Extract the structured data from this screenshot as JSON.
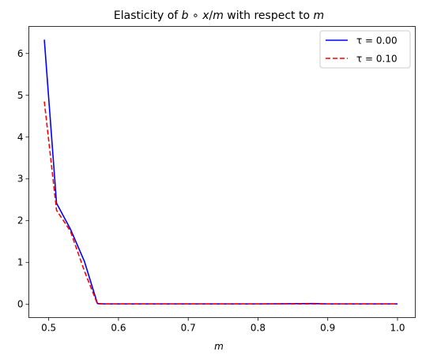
{
  "chart_data": {
    "type": "line",
    "title": {
      "prefix": "Elasticity of ",
      "expr_b": "b",
      "expr_op": " ∘ ",
      "expr_x": "x",
      "expr_slash": "/",
      "expr_m": "m",
      "middle": " with respect to ",
      "var": "m"
    },
    "xlabel": "m",
    "ylabel": "",
    "xlim": [
      0.4715,
      1.0255
    ],
    "ylim": [
      -0.3165,
      6.6467
    ],
    "xticks": [
      0.5,
      0.6,
      0.7,
      0.8,
      0.9,
      1.0
    ],
    "xtick_labels": [
      "0.5",
      "0.6",
      "0.7",
      "0.8",
      "0.9",
      "1.0"
    ],
    "yticks": [
      0,
      1,
      2,
      3,
      4,
      5,
      6
    ],
    "ytick_labels": [
      "0",
      "1",
      "2",
      "3",
      "4",
      "5",
      "6"
    ],
    "grid": false,
    "legend_position": "top-right",
    "series": [
      {
        "name": "τ = 0.00",
        "color": "#0000ff",
        "style": "solid",
        "x": [
          0.4937,
          0.5112,
          0.5311,
          0.5511,
          0.5698,
          0.5807,
          0.6,
          0.7,
          0.8,
          0.88,
          0.9,
          1.0
        ],
        "y": [
          6.33,
          2.42,
          1.8,
          1.03,
          0.02,
          0.01,
          0.01,
          0.01,
          0.01,
          0.02,
          0.01,
          0.01
        ]
      },
      {
        "name": "τ = 0.10",
        "color": "#ff0000",
        "style": "dashed",
        "x": [
          0.4937,
          0.5112,
          0.5311,
          0.5511,
          0.5698,
          0.5807,
          0.6,
          0.7,
          0.8,
          0.9,
          1.0
        ],
        "y": [
          4.85,
          2.25,
          1.75,
          0.8,
          0.01,
          0.01,
          0.01,
          0.01,
          0.01,
          0.01,
          0.01
        ]
      }
    ]
  }
}
